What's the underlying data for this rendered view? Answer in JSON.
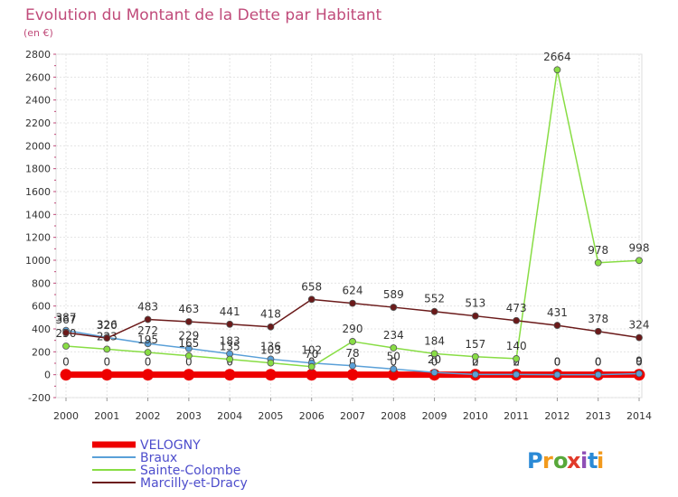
{
  "chart_data": {
    "type": "line",
    "title": "Evolution du Montant de la Dette par Habitant",
    "subtitle": "(en €)",
    "xlabel": "",
    "ylabel": "",
    "x": [
      "2000",
      "2001",
      "2002",
      "2003",
      "2004",
      "2005",
      "2006",
      "2007",
      "2008",
      "2009",
      "2010",
      "2011",
      "2012",
      "2013",
      "2014"
    ],
    "ylim": [
      -200,
      2800
    ],
    "yticks": [
      -200,
      0,
      200,
      400,
      600,
      800,
      1000,
      1200,
      1400,
      1600,
      1800,
      2000,
      2200,
      2400,
      2600,
      2800
    ],
    "grid": true,
    "legend_position": "bottom-left",
    "series": [
      {
        "name": "VELOGNY",
        "color": "#ee0000",
        "values": [
          0,
          0,
          0,
          0,
          0,
          0,
          0,
          0,
          0,
          0,
          0,
          0,
          0,
          0,
          0
        ],
        "labels": [
          "0",
          "0",
          "0",
          "0",
          "0",
          "0",
          "0",
          "0",
          "0",
          "0",
          "0",
          "0",
          "0",
          "0",
          "0"
        ]
      },
      {
        "name": "Braux",
        "color": "#5aa0d8",
        "values": [
          387,
          326,
          272,
          229,
          183,
          136,
          102,
          78,
          50,
          20,
          2,
          2,
          0,
          0,
          9
        ],
        "labels": [
          "387",
          "326",
          "272",
          "229",
          "183",
          "136",
          "102",
          "78",
          "50",
          "20",
          "2",
          "2",
          "0",
          "0",
          "9"
        ]
      },
      {
        "name": "Sainte-Colombe",
        "color": "#88dd44",
        "values": [
          250,
          223,
          195,
          165,
          135,
          103,
          70,
          290,
          234,
          184,
          157,
          140,
          2664,
          978,
          998
        ],
        "labels": [
          "250",
          "223",
          "195",
          "165",
          "135",
          "103",
          "70",
          "290",
          "234",
          "184",
          "157",
          "140",
          "2664",
          "978",
          "998"
        ]
      },
      {
        "name": "Marcilly-et-Dracy",
        "color": "#6b1a1a",
        "values": [
          367,
          320,
          483,
          463,
          441,
          418,
          658,
          624,
          589,
          552,
          513,
          473,
          431,
          378,
          324
        ],
        "labels": [
          "367",
          "320",
          "483",
          "463",
          "441",
          "418",
          "658",
          "624",
          "589",
          "552",
          "513",
          "473",
          "431",
          "378",
          "324"
        ]
      }
    ]
  },
  "brand": {
    "text": "Proxiti",
    "letters": [
      "P",
      "r",
      "o",
      "x",
      "i",
      "t",
      "i"
    ],
    "colors": [
      "#2b8ad6",
      "#f29a1d",
      "#58a83a",
      "#e13a2a",
      "#8f4fb6",
      "#2b8ad6",
      "#f29a1d"
    ]
  }
}
